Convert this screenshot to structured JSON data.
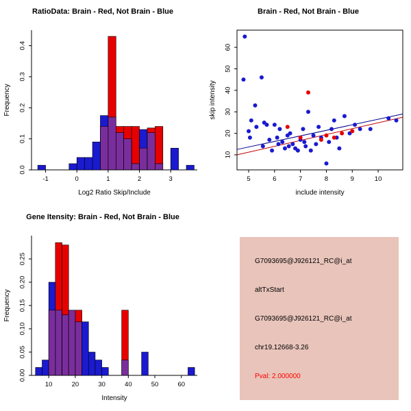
{
  "colors": {
    "brain": "#E60000",
    "not_brain": "#1A1ACF",
    "overlap": "#7A2E9D",
    "axis": "#000000",
    "fit_line_upper": "#00008B",
    "fit_line_lower": "#C00000"
  },
  "chart_data": [
    {
      "type": "bar",
      "title": "RatioData: Brain - Red, Not Brain - Blue",
      "xlabel": "Log2 Ratio Skip/Include",
      "ylabel": "Frequency",
      "bin_width": 0.25,
      "bin_starts": [
        -1.25,
        -1.0,
        -0.75,
        -0.5,
        -0.25,
        0,
        0.25,
        0.5,
        0.75,
        1.0,
        1.25,
        1.5,
        1.75,
        2.0,
        2.25,
        2.5,
        2.75,
        3.0,
        3.25,
        3.5
      ],
      "series": [
        {
          "name": "Brain",
          "color": "#E60000",
          "values": [
            0,
            0,
            0,
            0,
            0,
            0,
            0,
            0,
            0.14,
            0.43,
            0.14,
            0.14,
            0.14,
            0.07,
            0.135,
            0.14,
            0,
            0,
            0,
            0
          ]
        },
        {
          "name": "Not Brain",
          "color": "#1A1ACF",
          "values": [
            0.015,
            0,
            0,
            0,
            0.02,
            0.04,
            0.04,
            0.09,
            0.175,
            0.17,
            0.12,
            0.1,
            0.02,
            0.13,
            0.12,
            0.02,
            0,
            0.07,
            0,
            0.015
          ]
        }
      ],
      "xlim": [
        -1.45,
        3.85
      ],
      "ylim": [
        0,
        0.45
      ],
      "xticks": [
        -1,
        0,
        1,
        2,
        3
      ],
      "xtick_labels": [
        "-1",
        "0",
        "1",
        "2",
        "3"
      ],
      "yticks": [
        0,
        0.1,
        0.2,
        0.3,
        0.4
      ],
      "ytick_labels": [
        "0.0",
        "0.1",
        "0.2",
        "0.3",
        "0.4"
      ],
      "grid": false,
      "legend": "none"
    },
    {
      "type": "scatter",
      "title": "Brain - Red, Not Brain - Blue",
      "xlabel": "include intensity",
      "ylabel": "skip intensity",
      "xlim": [
        4.55,
        10.95
      ],
      "ylim": [
        3,
        68
      ],
      "xticks": [
        5,
        6,
        7,
        8,
        9,
        10
      ],
      "xtick_labels": [
        "5",
        "6",
        "7",
        "8",
        "9",
        "10"
      ],
      "yticks": [
        10,
        20,
        30,
        40,
        50,
        60
      ],
      "ytick_labels": [
        "10",
        "20",
        "30",
        "40",
        "50",
        "60"
      ],
      "grid": false,
      "legend": "none",
      "series": [
        {
          "name": "Not Brain",
          "color": "#1A1ACF",
          "points": [
            [
              4.8,
              45
            ],
            [
              4.85,
              65
            ],
            [
              5.0,
              21
            ],
            [
              5.05,
              18
            ],
            [
              5.1,
              26
            ],
            [
              5.25,
              33
            ],
            [
              5.3,
              23
            ],
            [
              5.5,
              46
            ],
            [
              5.55,
              14
            ],
            [
              5.6,
              25
            ],
            [
              5.7,
              24
            ],
            [
              5.8,
              17
            ],
            [
              5.9,
              12
            ],
            [
              6.0,
              24
            ],
            [
              6.1,
              18
            ],
            [
              6.15,
              15
            ],
            [
              6.2,
              22
            ],
            [
              6.3,
              16
            ],
            [
              6.4,
              13
            ],
            [
              6.5,
              19
            ],
            [
              6.55,
              14
            ],
            [
              6.6,
              20
            ],
            [
              6.7,
              15
            ],
            [
              6.8,
              13
            ],
            [
              6.9,
              12
            ],
            [
              7.0,
              17
            ],
            [
              7.1,
              22
            ],
            [
              7.15,
              16
            ],
            [
              7.2,
              14
            ],
            [
              7.3,
              30
            ],
            [
              7.4,
              12
            ],
            [
              7.5,
              19
            ],
            [
              7.6,
              15
            ],
            [
              7.7,
              23
            ],
            [
              7.8,
              18
            ],
            [
              8.0,
              6
            ],
            [
              8.1,
              16
            ],
            [
              8.2,
              22
            ],
            [
              8.3,
              26
            ],
            [
              8.4,
              18
            ],
            [
              8.5,
              13
            ],
            [
              8.7,
              28
            ],
            [
              8.9,
              20
            ],
            [
              9.1,
              24
            ],
            [
              9.3,
              22
            ],
            [
              9.7,
              22
            ],
            [
              10.4,
              27
            ],
            [
              10.7,
              26
            ]
          ]
        },
        {
          "name": "Brain",
          "color": "#E60000",
          "points": [
            [
              6.5,
              23
            ],
            [
              7.0,
              18
            ],
            [
              7.3,
              39
            ],
            [
              7.8,
              17
            ],
            [
              8.0,
              19
            ],
            [
              8.3,
              18
            ],
            [
              8.6,
              20
            ],
            [
              9.0,
              21
            ]
          ]
        }
      ],
      "lines": [
        {
          "name": "fit-not-brain",
          "color": "#00008B",
          "x1": 4.55,
          "y1": 12.5,
          "x2": 10.95,
          "y2": 29
        },
        {
          "name": "fit-brain",
          "color": "#C00000",
          "x1": 4.55,
          "y1": 10,
          "x2": 10.95,
          "y2": 27.5
        }
      ]
    },
    {
      "type": "bar",
      "title": "Gene Itensity: Brain - Red, Not Brain - Blue",
      "xlabel": "Intensity",
      "ylabel": "Frequency",
      "bin_width": 2.5,
      "bin_starts": [
        5,
        7.5,
        10,
        12.5,
        15,
        17.5,
        20,
        22.5,
        25,
        27.5,
        30,
        32.5,
        35,
        37.5,
        40,
        42.5,
        45,
        47.5,
        50,
        52.5,
        55,
        57.5,
        60,
        62.5
      ],
      "series": [
        {
          "name": "Brain",
          "color": "#E60000",
          "values": [
            0,
            0,
            0.14,
            0.285,
            0.28,
            0.14,
            0.14,
            0,
            0,
            0,
            0,
            0,
            0,
            0.14,
            0,
            0,
            0,
            0,
            0,
            0,
            0,
            0,
            0,
            0
          ]
        },
        {
          "name": "Not Brain",
          "color": "#1A1ACF",
          "values": [
            0.017,
            0.033,
            0.2,
            0.14,
            0.13,
            0.14,
            0.115,
            0.115,
            0.05,
            0.033,
            0.017,
            0,
            0,
            0.033,
            0,
            0,
            0.05,
            0,
            0,
            0,
            0,
            0,
            0,
            0.017
          ]
        }
      ],
      "xlim": [
        3.5,
        66
      ],
      "ylim": [
        0,
        0.3
      ],
      "xticks": [
        10,
        20,
        30,
        40,
        50,
        60
      ],
      "xtick_labels": [
        "10",
        "20",
        "30",
        "40",
        "50",
        "60"
      ],
      "yticks": [
        0,
        0.05,
        0.1,
        0.15,
        0.2,
        0.25
      ],
      "ytick_labels": [
        "0.00",
        "0.05",
        "0.10",
        "0.15",
        "0.20",
        "0.25"
      ],
      "grid": false,
      "legend": "none"
    }
  ],
  "info_panel": {
    "background": "#E8C4BA",
    "lines": [
      {
        "text": "G7093695@J926121_RC@i_at",
        "color": "#000000"
      },
      {
        "text": "altTxStart",
        "color": "#000000"
      },
      {
        "text": "G7093695@J926121_RC@i_at",
        "color": "#000000"
      },
      {
        "text": "chr19.12668-3.26",
        "color": "#000000"
      },
      {
        "text": "Pval: 2.000000",
        "color": "#FF0000"
      }
    ]
  }
}
